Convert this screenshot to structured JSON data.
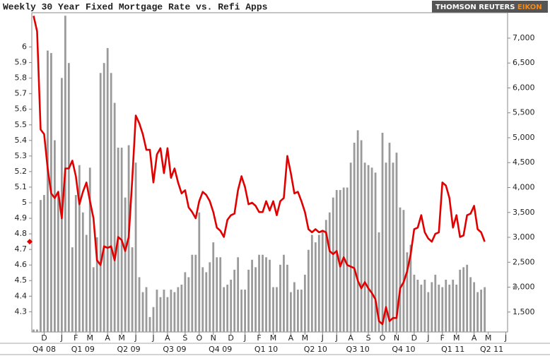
{
  "chart_data": {
    "type": "combo",
    "title": "Weekly 30 Year Fixed Mortgage Rate vs. Refi Apps",
    "brand": "THOMSON REUTERS",
    "brand_product": "EIKON",
    "categories": [
      null,
      null,
      null,
      "D",
      null,
      null,
      null,
      null,
      "J",
      null,
      null,
      null,
      "F",
      null,
      null,
      null,
      "M",
      null,
      null,
      null,
      null,
      "A",
      null,
      null,
      null,
      "M",
      null,
      null,
      null,
      "J",
      null,
      null,
      null,
      null,
      "J",
      null,
      null,
      null,
      "A",
      null,
      null,
      null,
      null,
      "S",
      null,
      null,
      null,
      "O",
      null,
      null,
      null,
      "N",
      null,
      null,
      null,
      null,
      "D",
      null,
      null,
      null,
      "J",
      null,
      null,
      null,
      "F",
      null,
      null,
      null,
      "M",
      null,
      null,
      null,
      null,
      "A",
      null,
      null,
      null,
      "M",
      null,
      null,
      null,
      null,
      "J",
      null,
      null,
      null,
      "J",
      null,
      null,
      null,
      "A",
      null,
      null,
      null,
      null,
      "S",
      null,
      null,
      null,
      "O",
      null,
      null,
      null,
      "N",
      null,
      null,
      null,
      null,
      "D",
      null,
      null,
      null,
      "J",
      null,
      null,
      null,
      "F",
      null,
      null,
      null,
      "M",
      null,
      null,
      null,
      null,
      "A",
      null,
      null,
      null,
      "M",
      null,
      null,
      null,
      null,
      "J"
    ],
    "quarters": [
      null,
      null,
      null,
      "Q4 08",
      null,
      null,
      null,
      null,
      null,
      null,
      null,
      null,
      null,
      null,
      "Q1 09",
      null,
      null,
      null,
      null,
      null,
      null,
      null,
      null,
      null,
      null,
      null,
      null,
      "Q2 09",
      null,
      null,
      null,
      null,
      null,
      null,
      null,
      null,
      null,
      null,
      null,
      null,
      "Q3 09",
      null,
      null,
      null,
      null,
      null,
      null,
      null,
      null,
      null,
      null,
      null,
      null,
      "Q4 09",
      null,
      null,
      null,
      null,
      null,
      null,
      null,
      null,
      null,
      null,
      null,
      null,
      "Q1 10",
      null,
      null,
      null,
      null,
      null,
      null,
      null,
      null,
      null,
      null,
      null,
      null,
      null,
      "Q2 10",
      null,
      null,
      null,
      null,
      null,
      null,
      null,
      null,
      null,
      null,
      null,
      "Q3 10",
      null,
      null,
      null,
      null,
      null,
      null,
      null,
      null,
      null,
      null,
      null,
      null,
      "Q4 10",
      null,
      null,
      null,
      null,
      null,
      null,
      null,
      null,
      null,
      null,
      null,
      null,
      null,
      "Q1 11",
      null,
      null,
      null,
      null,
      null,
      null,
      null,
      null,
      null,
      null,
      "Q2 11",
      null,
      null,
      null,
      null
    ],
    "series": [
      {
        "type": "bar",
        "axis": "y2",
        "color": "#9a9a9a",
        "values": [
          1150,
          1150,
          3750,
          3850,
          6750,
          6700,
          4950,
          3900,
          6200,
          7450,
          6500,
          2800,
          3850,
          4450,
          3500,
          3050,
          4400,
          2400,
          3000,
          6300,
          6500,
          6800,
          6300,
          5700,
          4800,
          4800,
          3800,
          4850,
          2800,
          4500,
          2200,
          1900,
          2000,
          1400,
          1600,
          1950,
          1800,
          1950,
          1800,
          1950,
          1900,
          2000,
          2050,
          2300,
          2200,
          2650,
          2650,
          3500,
          2400,
          2300,
          2500,
          2900,
          2600,
          2600,
          2000,
          2050,
          2150,
          2350,
          2600,
          1950,
          1950,
          2350,
          2550,
          2400,
          2650,
          2650,
          2600,
          2550,
          2000,
          2000,
          2450,
          2650,
          2450,
          1900,
          2100,
          1950,
          1950,
          2250,
          2750,
          3050,
          2900,
          3050,
          3150,
          3350,
          3500,
          3800,
          3950,
          3950,
          4000,
          4000,
          4500,
          4900,
          5150,
          4950,
          4500,
          4450,
          4400,
          4300,
          3100,
          5100,
          4500,
          4900,
          4500,
          4700,
          3600,
          3550,
          2700,
          2850,
          2250,
          2150,
          2050,
          2150,
          1900,
          2100,
          2250,
          2050,
          2000,
          2150,
          2050,
          2150,
          2050,
          2350,
          2400,
          2450,
          2200,
          2100,
          1900,
          1950,
          2000,
          null,
          null,
          null,
          null,
          null,
          null
        ]
      },
      {
        "type": "line",
        "axis": "y",
        "color": "#e00000",
        "values": [
          6.2,
          6.1,
          5.47,
          5.44,
          5.22,
          5.06,
          5.03,
          5.07,
          4.9,
          5.22,
          5.22,
          5.27,
          5.17,
          4.99,
          5.07,
          5.13,
          5.01,
          4.9,
          4.63,
          4.6,
          4.72,
          4.71,
          4.72,
          4.63,
          4.78,
          4.76,
          4.69,
          4.78,
          5.15,
          5.56,
          5.51,
          5.44,
          5.34,
          5.34,
          5.13,
          5.31,
          5.35,
          5.19,
          5.35,
          5.16,
          5.22,
          5.13,
          5.06,
          5.08,
          4.97,
          4.94,
          4.9,
          5.01,
          5.07,
          5.05,
          5.01,
          4.94,
          4.84,
          4.82,
          4.78,
          4.89,
          4.92,
          4.93,
          5.08,
          5.17,
          5.1,
          4.99,
          5.0,
          4.98,
          4.94,
          4.94,
          5.01,
          4.95,
          5.01,
          4.92,
          5.01,
          5.03,
          5.3,
          5.19,
          5.06,
          5.07,
          5.01,
          4.94,
          4.83,
          4.81,
          4.83,
          4.81,
          4.82,
          4.81,
          4.69,
          4.67,
          4.69,
          4.59,
          4.65,
          4.6,
          4.59,
          4.58,
          4.5,
          4.45,
          4.49,
          4.45,
          4.42,
          4.38,
          4.24,
          4.22,
          4.33,
          4.24,
          4.26,
          4.26,
          4.45,
          4.49,
          4.56,
          4.67,
          4.83,
          4.84,
          4.92,
          4.81,
          4.77,
          4.75,
          4.8,
          4.81,
          5.13,
          5.11,
          5.03,
          4.84,
          4.92,
          4.78,
          4.79,
          4.92,
          4.93,
          4.98,
          4.83,
          4.81,
          4.75,
          null,
          null,
          null,
          null,
          null,
          null
        ]
      }
    ],
    "ylim": [
      4.17,
      6.22
    ],
    "yticks": [
      4.3,
      4.4,
      4.5,
      4.6,
      4.7,
      4.8,
      4.9,
      5,
      5.1,
      5.2,
      5.3,
      5.4,
      5.5,
      5.6,
      5.7,
      5.8,
      5.9,
      6
    ],
    "y2lim": [
      1100,
      7510
    ],
    "y2ticks": [
      {
        "value": 1500,
        "label": "1,500"
      },
      {
        "value": 2000,
        "label": "2,000"
      },
      {
        "value": 2500,
        "label": "2,500"
      },
      {
        "value": 3000,
        "label": "3,000"
      },
      {
        "value": 3500,
        "label": "3,500"
      },
      {
        "value": 4000,
        "label": "4,000"
      },
      {
        "value": 4500,
        "label": "4,500"
      },
      {
        "value": 5000,
        "label": "5,000"
      },
      {
        "value": 5500,
        "label": "5,500"
      },
      {
        "value": 6000,
        "label": "6,000"
      },
      {
        "value": 6500,
        "label": "6,500"
      },
      {
        "value": 7000,
        "label": "7,000"
      }
    ],
    "grid": false
  }
}
